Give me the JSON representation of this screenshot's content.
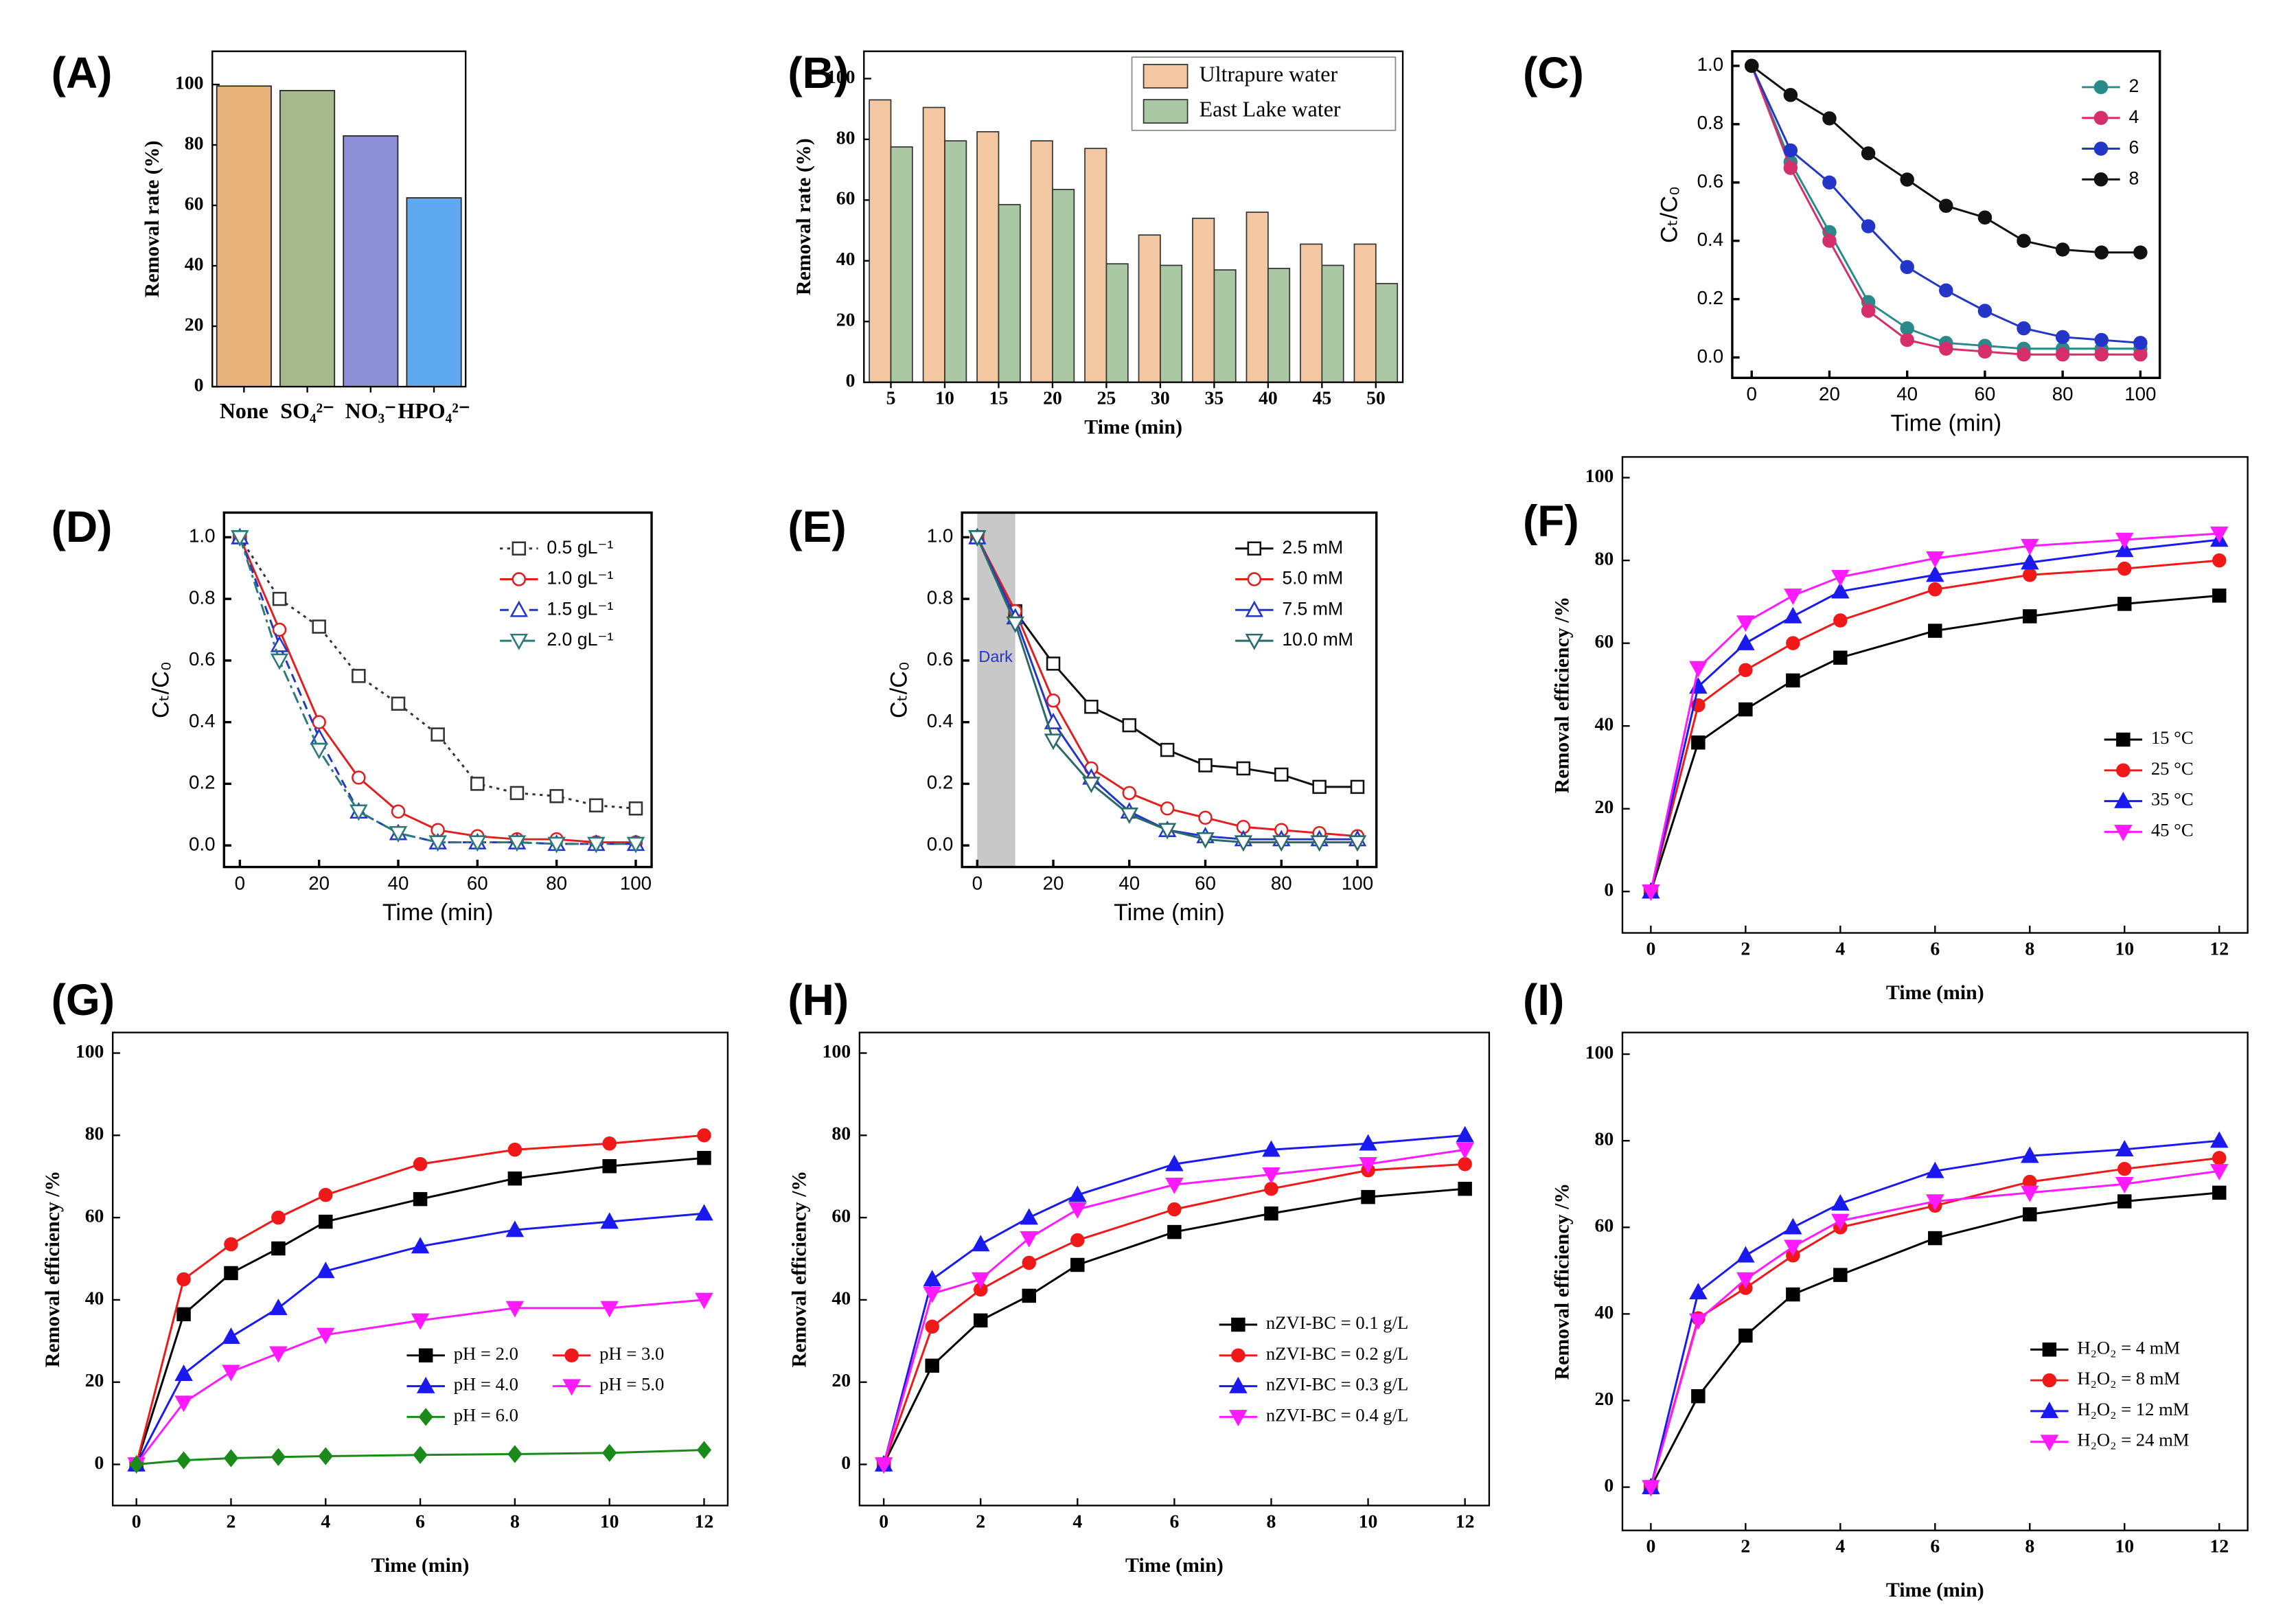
{
  "chart_data": [
    {
      "type": "bar",
      "panel_label": "(A)",
      "font": "serif",
      "ylabel": "Removal rate (%)",
      "categories": [
        "None",
        "SO₄²⁻",
        "NO₃⁻",
        "HPO₄²⁻"
      ],
      "values": [
        99.5,
        98,
        83,
        62.5
      ],
      "colors": [
        "#e8b37a",
        "#a7b98c",
        "#8c8fd6",
        "#5ea9ef"
      ],
      "ylim": [
        0,
        111
      ],
      "yticks": [
        0,
        20,
        40,
        60,
        80,
        100
      ]
    },
    {
      "type": "bar",
      "panel_label": "(B)",
      "font": "serif",
      "xlabel": "Time (min)",
      "ylabel": "Removal rate (%)",
      "legend": "upper right",
      "categories": [
        "5",
        "10",
        "15",
        "20",
        "25",
        "30",
        "35",
        "40",
        "45",
        "50"
      ],
      "series": [
        {
          "name": "Ultrapure water",
          "color": "#f2c7a2",
          "values": [
            93,
            90.5,
            82.5,
            79.5,
            77,
            48.5,
            54,
            56,
            45.5,
            45.5
          ]
        },
        {
          "name": "East Lake water",
          "color": "#a9c8a3",
          "values": [
            77.5,
            79.5,
            58.5,
            63.5,
            39,
            38.5,
            37,
            37.5,
            38.5,
            32.5
          ]
        }
      ],
      "ylim": [
        0,
        109
      ],
      "yticks": [
        0,
        20,
        40,
        60,
        80,
        100
      ]
    },
    {
      "type": "line",
      "panel_label": "(C)",
      "font": "sans",
      "xlabel": "Time (min)",
      "ylabel": "Cₜ/C₀",
      "legend": "upper right",
      "x": [
        0,
        10,
        20,
        30,
        40,
        50,
        60,
        70,
        80,
        90,
        100
      ],
      "series": [
        {
          "name": "2",
          "color": "#2a8a8a",
          "marker": "circle",
          "values": [
            1,
            0.67,
            0.43,
            0.19,
            0.1,
            0.05,
            0.04,
            0.03,
            0.03,
            0.03,
            0.03
          ]
        },
        {
          "name": "4",
          "color": "#d62e6a",
          "marker": "circle",
          "values": [
            1,
            0.65,
            0.4,
            0.16,
            0.06,
            0.03,
            0.02,
            0.01,
            0.01,
            0.01,
            0.01
          ]
        },
        {
          "name": "6",
          "color": "#2436c8",
          "marker": "circle",
          "values": [
            1,
            0.71,
            0.6,
            0.45,
            0.31,
            0.23,
            0.16,
            0.1,
            0.07,
            0.06,
            0.05
          ]
        },
        {
          "name": "8",
          "color": "#111111",
          "marker": "circle",
          "values": [
            1,
            0.9,
            0.82,
            0.7,
            0.61,
            0.52,
            0.48,
            0.4,
            0.37,
            0.36,
            0.36
          ]
        }
      ],
      "xlim": [
        -5,
        105
      ],
      "xticks": [
        0,
        20,
        40,
        60,
        80,
        100
      ],
      "ylim": [
        -0.07,
        1.05
      ],
      "yticks": [
        {
          "value": 0,
          "label": "0.0"
        },
        0.2,
        0.4,
        0.6,
        0.8,
        {
          "value": 1,
          "label": "1.0"
        }
      ]
    },
    {
      "type": "line",
      "panel_label": "(D)",
      "font": "sans",
      "xlabel": "Time (min)",
      "ylabel": "Cₜ/C₀",
      "legend": "upper right",
      "x": [
        0,
        10,
        20,
        30,
        40,
        50,
        60,
        70,
        80,
        90,
        100
      ],
      "series": [
        {
          "name": "0.5 gL⁻¹",
          "color": "#333333",
          "marker": "square",
          "filled": false,
          "dash": "dotted",
          "values": [
            1,
            0.8,
            0.71,
            0.55,
            0.46,
            0.36,
            0.2,
            0.17,
            0.16,
            0.13,
            0.12
          ]
        },
        {
          "name": "1.0 gL⁻¹",
          "color": "#e02020",
          "marker": "circle",
          "filled": false,
          "values": [
            1,
            0.7,
            0.4,
            0.22,
            0.11,
            0.05,
            0.03,
            0.02,
            0.02,
            0.01,
            0.01
          ]
        },
        {
          "name": "1.5 gL⁻¹",
          "color": "#2436c8",
          "marker": "triangle-up",
          "filled": false,
          "dash": "dashed",
          "values": [
            1,
            0.65,
            0.35,
            0.11,
            0.04,
            0.01,
            0.01,
            0.01,
            0.005,
            0.005,
            0.005
          ]
        },
        {
          "name": "2.0 gL⁻¹",
          "color": "#2a7a7a",
          "marker": "triangle-down",
          "filled": false,
          "dash": "dashdot",
          "values": [
            1,
            0.6,
            0.31,
            0.11,
            0.04,
            0.01,
            0.01,
            0.01,
            0.005,
            0.005,
            0.005
          ]
        }
      ],
      "xlim": [
        -4,
        104
      ],
      "xticks": [
        0,
        20,
        40,
        60,
        80,
        100
      ],
      "ylim": [
        -0.07,
        1.08
      ],
      "yticks": [
        {
          "value": 0,
          "label": "0.0"
        },
        0.2,
        0.4,
        0.6,
        0.8,
        {
          "value": 1,
          "label": "1.0"
        }
      ]
    },
    {
      "type": "line",
      "panel_label": "(E)",
      "font": "sans",
      "xlabel": "Time (min)",
      "ylabel": "Cₜ/C₀",
      "legend": "upper right",
      "dark_region": [
        0,
        10
      ],
      "dark_label": "Dark",
      "x": [
        0,
        10,
        20,
        30,
        40,
        50,
        60,
        70,
        80,
        90,
        100
      ],
      "series": [
        {
          "name": "2.5 mM",
          "color": "#111111",
          "marker": "square",
          "filled": false,
          "values": [
            1,
            0.76,
            0.59,
            0.45,
            0.39,
            0.31,
            0.26,
            0.25,
            0.23,
            0.19,
            0.19
          ]
        },
        {
          "name": "5.0 mM",
          "color": "#e02020",
          "marker": "circle",
          "filled": false,
          "values": [
            1,
            0.76,
            0.47,
            0.25,
            0.17,
            0.12,
            0.09,
            0.06,
            0.05,
            0.04,
            0.03
          ]
        },
        {
          "name": "7.5 mM",
          "color": "#2436c8",
          "marker": "triangle-up",
          "filled": false,
          "values": [
            1,
            0.74,
            0.4,
            0.22,
            0.11,
            0.05,
            0.03,
            0.02,
            0.02,
            0.02,
            0.02
          ]
        },
        {
          "name": "10.0 mM",
          "color": "#2a6a6a",
          "marker": "triangle-down",
          "filled": false,
          "values": [
            1,
            0.72,
            0.34,
            0.2,
            0.1,
            0.05,
            0.02,
            0.01,
            0.01,
            0.01,
            0.01
          ]
        }
      ],
      "xlim": [
        -4,
        105
      ],
      "xticks": [
        0,
        20,
        40,
        60,
        80,
        100
      ],
      "ylim": [
        -0.07,
        1.08
      ],
      "yticks": [
        {
          "value": 0,
          "label": "0.0"
        },
        0.2,
        0.4,
        0.6,
        0.8,
        {
          "value": 1,
          "label": "1.0"
        }
      ]
    },
    {
      "type": "line",
      "panel_label": "(F)",
      "font": "serif",
      "xlabel": "Time (min)",
      "ylabel": "Removal efficiency /%",
      "legend": "center right",
      "x": [
        0,
        1,
        2,
        3,
        4,
        6,
        8,
        10,
        12
      ],
      "series": [
        {
          "name": "15 °C",
          "color": "#000000",
          "marker": "square",
          "values": [
            0,
            36,
            44,
            51,
            56.5,
            63,
            66.5,
            69.5,
            71.5
          ]
        },
        {
          "name": "25 °C",
          "color": "#f01818",
          "marker": "circle",
          "values": [
            0,
            45,
            53.5,
            60,
            65.5,
            73,
            76.5,
            78,
            80
          ]
        },
        {
          "name": "35 °C",
          "color": "#1a1af0",
          "marker": "triangle-up",
          "values": [
            0,
            49.5,
            60,
            66.5,
            72.5,
            76.5,
            79.5,
            82.5,
            85
          ]
        },
        {
          "name": "45 °C",
          "color": "#ff1aff",
          "marker": "triangle-down",
          "values": [
            0,
            54,
            65,
            71.5,
            76,
            80.5,
            83.5,
            85,
            86.5
          ]
        }
      ],
      "xlim": [
        -0.6,
        12.6
      ],
      "xticks": [
        0,
        2,
        4,
        6,
        8,
        10,
        12
      ],
      "ylim": [
        -10,
        105
      ],
      "yticks": [
        0,
        20,
        40,
        60,
        80,
        100
      ]
    },
    {
      "type": "line",
      "panel_label": "(G)",
      "font": "serif",
      "xlabel": "Time (min)",
      "ylabel": "Removal efficiency /%",
      "legend": "lower right",
      "legend_columns": 2,
      "x": [
        0,
        1,
        2,
        3,
        4,
        6,
        8,
        10,
        12
      ],
      "series": [
        {
          "name": "pH = 2.0",
          "color": "#000000",
          "marker": "square",
          "values": [
            0,
            36.5,
            46.5,
            52.5,
            59,
            64.5,
            69.5,
            72.5,
            74.5
          ]
        },
        {
          "name": "pH = 3.0",
          "color": "#f01818",
          "marker": "circle",
          "values": [
            0,
            45,
            53.5,
            60,
            65.5,
            73,
            76.5,
            78,
            80
          ]
        },
        {
          "name": "pH = 4.0",
          "color": "#1a1af0",
          "marker": "triangle-up",
          "values": [
            0,
            22,
            31,
            38,
            47,
            53,
            57,
            59,
            61
          ]
        },
        {
          "name": "pH = 5.0",
          "color": "#ff1aff",
          "marker": "triangle-down",
          "values": [
            0,
            15,
            22.5,
            27,
            31.5,
            35,
            38,
            38,
            40
          ]
        },
        {
          "name": "pH = 6.0",
          "color": "#1a8a1a",
          "marker": "diamond",
          "values": [
            0,
            1,
            1.5,
            1.8,
            2,
            2.3,
            2.5,
            2.8,
            3.5
          ]
        }
      ],
      "xlim": [
        -0.5,
        12.5
      ],
      "xticks": [
        0,
        2,
        4,
        6,
        8,
        10,
        12
      ],
      "ylim": [
        -10,
        105
      ],
      "yticks": [
        0,
        20,
        40,
        60,
        80,
        100
      ]
    },
    {
      "type": "line",
      "panel_label": "(H)",
      "font": "serif",
      "xlabel": "Time (min)",
      "ylabel": "Removal efficiency /%",
      "legend": "lower right",
      "x": [
        0,
        1,
        2,
        3,
        4,
        6,
        8,
        10,
        12
      ],
      "series": [
        {
          "name": "nZVI-BC = 0.1 g/L",
          "color": "#000000",
          "marker": "square",
          "values": [
            0,
            24,
            35,
            41,
            48.5,
            56.5,
            61,
            65,
            67
          ]
        },
        {
          "name": "nZVI-BC = 0.2 g/L",
          "color": "#f01818",
          "marker": "circle",
          "values": [
            0,
            33.5,
            42.5,
            49,
            54.5,
            62,
            67,
            71.5,
            73
          ]
        },
        {
          "name": "nZVI-BC = 0.3 g/L",
          "color": "#1a1af0",
          "marker": "triangle-up",
          "values": [
            0,
            45,
            53.5,
            60,
            65.5,
            73,
            76.5,
            78,
            80
          ]
        },
        {
          "name": "nZVI-BC = 0.4 g/L",
          "color": "#ff1aff",
          "marker": "triangle-down",
          "values": [
            0,
            41.5,
            45,
            55,
            62,
            68,
            70.5,
            73,
            76.5
          ]
        }
      ],
      "xlim": [
        -0.5,
        12.5
      ],
      "xticks": [
        0,
        2,
        4,
        6,
        8,
        10,
        12
      ],
      "ylim": [
        -10,
        105
      ],
      "yticks": [
        0,
        20,
        40,
        60,
        80,
        100
      ]
    },
    {
      "type": "line",
      "panel_label": "(I)",
      "font": "serif",
      "xlabel": "Time (min)",
      "ylabel": "Removal efficiency /%",
      "legend": "lower right",
      "x": [
        0,
        1,
        2,
        3,
        4,
        6,
        8,
        10,
        12
      ],
      "series": [
        {
          "name": "H₂O₂ = 4 mM",
          "color": "#000000",
          "marker": "square",
          "values": [
            0,
            21,
            35,
            44.5,
            49,
            57.5,
            63,
            66,
            68
          ]
        },
        {
          "name": "H₂O₂ = 8 mM",
          "color": "#f01818",
          "marker": "circle",
          "values": [
            0,
            39,
            46,
            53.5,
            60,
            65,
            70.5,
            73.5,
            76
          ]
        },
        {
          "name": "H₂O₂ = 12 mM",
          "color": "#1a1af0",
          "marker": "triangle-up",
          "values": [
            0,
            45,
            53.5,
            60,
            65.5,
            73,
            76.5,
            78,
            80
          ]
        },
        {
          "name": "H₂O₂ = 24 mM",
          "color": "#ff1aff",
          "marker": "triangle-down",
          "values": [
            0,
            38.5,
            48,
            55.5,
            61.5,
            66,
            68,
            70,
            73
          ]
        }
      ],
      "xlim": [
        -0.6,
        12.6
      ],
      "xticks": [
        0,
        2,
        4,
        6,
        8,
        10,
        12
      ],
      "ylim": [
        -10,
        105
      ],
      "yticks": [
        0,
        20,
        40,
        60,
        80,
        100
      ]
    }
  ]
}
